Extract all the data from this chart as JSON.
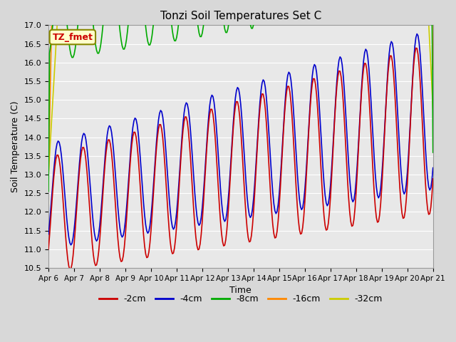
{
  "title": "Tonzi Soil Temperatures Set C",
  "xlabel": "Time",
  "ylabel": "Soil Temperature (C)",
  "ylim": [
    10.5,
    17.0
  ],
  "yticks": [
    10.5,
    11.0,
    11.5,
    12.0,
    12.5,
    13.0,
    13.5,
    14.0,
    14.5,
    15.0,
    15.5,
    16.0,
    16.5,
    17.0
  ],
  "xtick_labels": [
    "Apr 6",
    "Apr 7",
    "Apr 8",
    "Apr 9",
    "Apr 10",
    "Apr 11",
    "Apr 12",
    "Apr 13",
    "Apr 14",
    "Apr 15",
    "Apr 16",
    "Apr 17",
    "Apr 18",
    "Apr 19",
    "Apr 20",
    "Apr 21"
  ],
  "colors": {
    "-2cm": "#cc0000",
    "-4cm": "#0000cc",
    "-8cm": "#00aa00",
    "-16cm": "#ff8800",
    "-32cm": "#cccc00"
  },
  "legend_label": "TZ_fmet",
  "legend_bg": "#ffffcc",
  "legend_border": "#888800",
  "fig_bg": "#d8d8d8",
  "plot_bg": "#e8e8e8",
  "grid_color": "#ffffff",
  "linewidth": 1.2
}
